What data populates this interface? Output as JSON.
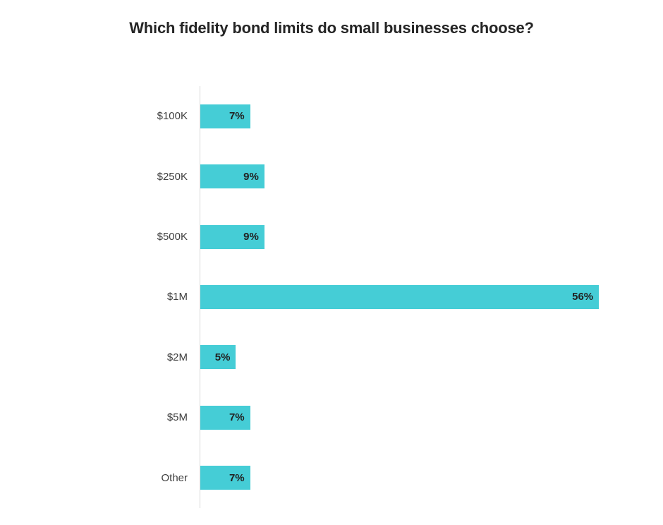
{
  "page": {
    "background": "#ffffff"
  },
  "chart_data": {
    "type": "bar",
    "orientation": "horizontal",
    "title": "Which fidelity bond limits do small businesses choose?",
    "categories": [
      "$100K",
      "$250K",
      "$500K",
      "$1M",
      "$2M",
      "$5M",
      "Other"
    ],
    "values": [
      7,
      9,
      9,
      56,
      5,
      7,
      7
    ],
    "labels": [
      "7%",
      "9%",
      "9%",
      "56%",
      "5%",
      "7%",
      "7%"
    ],
    "xlabel": "",
    "ylabel": "",
    "xlim": [
      0,
      65
    ],
    "grid": false,
    "legend": false,
    "value_labels_position": "inside-end",
    "bar_color": "#45cdd6",
    "axis_line_color": "#d8d8d8",
    "title_color": "#252525",
    "category_label_color": "#3f3f3f",
    "value_label_color": "#212121"
  }
}
